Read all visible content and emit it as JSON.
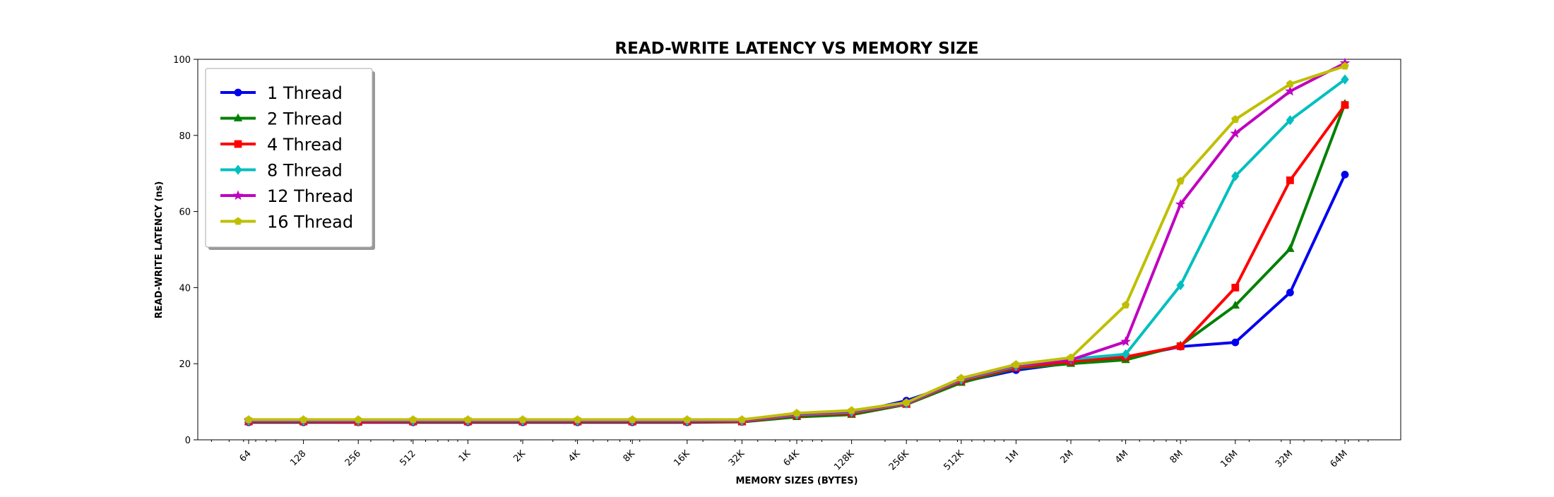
{
  "chart_data": {
    "type": "line",
    "title": "READ-WRITE LATENCY VS MEMORY SIZE",
    "xlabel": "MEMORY SIZES (BYTES)",
    "ylabel": "READ-WRITE LATENCY (ns)",
    "x_scale": "log2",
    "ylim": [
      0,
      100
    ],
    "y_ticks": [
      0,
      20,
      40,
      60,
      80,
      100
    ],
    "grid": false,
    "legend_position": "upper-left",
    "categories": [
      "64",
      "128",
      "256",
      "512",
      "1K",
      "2K",
      "4K",
      "8K",
      "16K",
      "32K",
      "64K",
      "128K",
      "256K",
      "512K",
      "1M",
      "2M",
      "4M",
      "8M",
      "16M",
      "32M",
      "64M"
    ],
    "series": [
      {
        "name": "1 Thread",
        "color": "#0000ee",
        "marker": "circle",
        "values": [
          4.6,
          4.6,
          4.6,
          4.6,
          4.6,
          4.6,
          4.6,
          4.6,
          4.6,
          4.7,
          6.2,
          7.0,
          10.3,
          15.2,
          18.3,
          20.2,
          21.5,
          24.5,
          25.6,
          38.7,
          69.7
        ]
      },
      {
        "name": "2 Thread",
        "color": "#008000",
        "marker": "triangle",
        "values": [
          4.7,
          4.7,
          4.7,
          4.7,
          4.7,
          4.7,
          4.7,
          4.7,
          4.7,
          4.7,
          6.0,
          6.6,
          9.3,
          15.0,
          18.8,
          20.0,
          21.0,
          24.8,
          35.3,
          50.2,
          88.3
        ]
      },
      {
        "name": "4 Thread",
        "color": "#ff0000",
        "marker": "square",
        "values": [
          4.8,
          4.8,
          4.7,
          4.8,
          4.8,
          4.8,
          4.8,
          4.8,
          4.8,
          4.8,
          6.4,
          7.0,
          9.4,
          15.5,
          19.0,
          20.6,
          21.8,
          24.6,
          40.0,
          68.2,
          88.0
        ]
      },
      {
        "name": "8 Thread",
        "color": "#00bfbf",
        "marker": "diamond",
        "values": [
          5.0,
          5.0,
          5.0,
          5.0,
          5.0,
          5.0,
          5.0,
          5.0,
          5.0,
          5.0,
          6.6,
          7.3,
          9.5,
          15.8,
          19.4,
          21.2,
          22.5,
          40.6,
          69.3,
          84.0,
          94.7
        ]
      },
      {
        "name": "12 Thread",
        "color": "#bf00bf",
        "marker": "star",
        "values": [
          5.1,
          5.1,
          5.1,
          5.1,
          5.1,
          5.1,
          5.1,
          5.1,
          5.1,
          5.1,
          6.8,
          7.5,
          9.6,
          16.0,
          19.6,
          21.0,
          25.8,
          61.9,
          80.5,
          91.6,
          99.0
        ]
      },
      {
        "name": "16 Thread",
        "color": "#bfbf00",
        "marker": "pentagon",
        "values": [
          5.3,
          5.3,
          5.3,
          5.3,
          5.3,
          5.3,
          5.3,
          5.3,
          5.3,
          5.3,
          7.0,
          7.7,
          9.8,
          16.2,
          19.8,
          21.6,
          35.4,
          68.0,
          84.2,
          93.5,
          98.2
        ]
      }
    ]
  }
}
